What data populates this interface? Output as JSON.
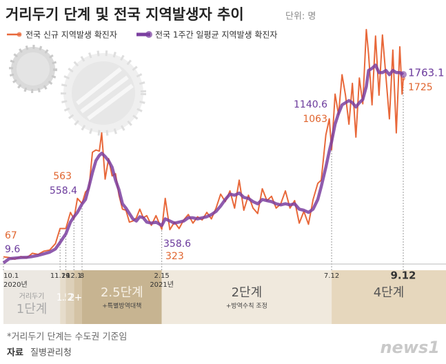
{
  "chart_data": {
    "type": "line",
    "title": "거리두기 단계 및 전국 지역발생자 추이",
    "unit": "단위: 명",
    "x": [
      "2020-10-01",
      "2020-10-06",
      "2020-10-11",
      "2020-10-16",
      "2020-10-21",
      "2020-10-26",
      "2020-10-31",
      "2020-11-05",
      "2020-11-10",
      "2020-11-15",
      "2020-11-19",
      "2020-11-24",
      "2020-11-28",
      "2020-12-01",
      "2020-12-04",
      "2020-12-08",
      "2020-12-11",
      "2020-12-14",
      "2020-12-17",
      "2020-12-20",
      "2020-12-23",
      "2020-12-25",
      "2020-12-28",
      "2020-12-31",
      "2021-01-03",
      "2021-01-06",
      "2021-01-09",
      "2021-01-12",
      "2021-01-15",
      "2021-01-18",
      "2021-01-21",
      "2021-01-24",
      "2021-01-27",
      "2021-01-30",
      "2021-02-02",
      "2021-02-06",
      "2021-02-10",
      "2021-02-15",
      "2021-02-18",
      "2021-02-22",
      "2021-02-26",
      "2021-03-02",
      "2021-03-06",
      "2021-03-10",
      "2021-03-14",
      "2021-03-18",
      "2021-03-22",
      "2021-03-26",
      "2021-03-30",
      "2021-04-03",
      "2021-04-07",
      "2021-04-11",
      "2021-04-15",
      "2021-04-19",
      "2021-04-23",
      "2021-04-27",
      "2021-05-01",
      "2021-05-05",
      "2021-05-09",
      "2021-05-13",
      "2021-05-17",
      "2021-05-21",
      "2021-05-25",
      "2021-05-29",
      "2021-06-02",
      "2021-06-06",
      "2021-06-10",
      "2021-06-14",
      "2021-06-18",
      "2021-06-22",
      "2021-06-26",
      "2021-06-30",
      "2021-07-03",
      "2021-07-07",
      "2021-07-10",
      "2021-07-12",
      "2021-07-15",
      "2021-07-18",
      "2021-07-21",
      "2021-07-24",
      "2021-07-27",
      "2021-07-30",
      "2021-08-02",
      "2021-08-05",
      "2021-08-08",
      "2021-08-11",
      "2021-08-13",
      "2021-08-16",
      "2021-08-19",
      "2021-08-22",
      "2021-08-25",
      "2021-08-28",
      "2021-08-31",
      "2021-09-03",
      "2021-09-06",
      "2021-09-09",
      "2021-09-11",
      "2021-09-12"
    ],
    "series": [
      {
        "name": "전국 신규 지역발생 확진자",
        "color": "#e8683a",
        "values": [
          67,
          60,
          45,
          70,
          55,
          100,
          90,
          120,
          130,
          190,
          330,
          330,
          480,
          420,
          610,
          563,
          670,
          700,
          1040,
          1060,
          1050,
          1220,
          790,
          980,
          820,
          840,
          640,
          510,
          500,
          390,
          400,
          430,
          510,
          430,
          450,
          360,
          450,
          323,
          610,
          320,
          390,
          330,
          410,
          460,
          380,
          440,
          410,
          480,
          420,
          520,
          650,
          580,
          680,
          520,
          780,
          500,
          640,
          520,
          470,
          700,
          590,
          630,
          520,
          560,
          680,
          520,
          590,
          380,
          490,
          370,
          600,
          750,
          780,
          1200,
          1350,
          1063,
          1580,
          1390,
          1760,
          1570,
          1300,
          1680,
          1180,
          1730,
          1490,
          2180,
          1950,
          1480,
          2120,
          1570,
          2130,
          1740,
          1350,
          1990,
          1220,
          2020,
          1580,
          1725
        ],
        "value_labels": [
          "67",
          null,
          null,
          null,
          null,
          null,
          null,
          null,
          null,
          null,
          null,
          null,
          null,
          null,
          null,
          "563",
          null,
          null,
          null,
          null,
          null,
          null,
          null,
          null,
          null,
          null,
          null,
          null,
          null,
          null,
          null,
          null,
          null,
          null,
          null,
          null,
          null,
          "323",
          null,
          null,
          null,
          null,
          null,
          null,
          null,
          null,
          null,
          null,
          null,
          null,
          null,
          null,
          null,
          null,
          null,
          null,
          null,
          null,
          null,
          null,
          null,
          null,
          null,
          null,
          null,
          null,
          null,
          null,
          null,
          null,
          null,
          null,
          null,
          null,
          null,
          "1063",
          null,
          null,
          null,
          null,
          null,
          null,
          null,
          null,
          null,
          null,
          null,
          null,
          null,
          null,
          null,
          null,
          null,
          null,
          null,
          null,
          null,
          "1725"
        ]
      },
      {
        "name": "전국 1주간 일평균 지역발생 확진자",
        "color": "#7b3fa0",
        "values": [
          9.6,
          50,
          55,
          60,
          62,
          70,
          80,
          95,
          110,
          140,
          200,
          280,
          390,
          440,
          480,
          558.4,
          600,
          720,
          850,
          960,
          1010,
          1030,
          1000,
          960,
          900,
          780,
          690,
          560,
          520,
          470,
          420,
          400,
          440,
          430,
          390,
          380,
          390,
          358.6,
          420,
          400,
          380,
          390,
          400,
          430,
          430,
          420,
          430,
          440,
          460,
          490,
          540,
          600,
          650,
          640,
          660,
          620,
          610,
          580,
          560,
          600,
          590,
          580,
          560,
          550,
          560,
          550,
          560,
          510,
          500,
          480,
          510,
          600,
          720,
          900,
          1050,
          1140.6,
          1300,
          1400,
          1480,
          1500,
          1520,
          1500,
          1460,
          1500,
          1530,
          1650,
          1800,
          1820,
          1850,
          1780,
          1780,
          1800,
          1760,
          1800,
          1780,
          1780,
          1770,
          1763.1
        ],
        "value_labels": [
          "9.6",
          null,
          null,
          null,
          null,
          null,
          null,
          null,
          null,
          null,
          null,
          null,
          null,
          null,
          null,
          "558.4",
          null,
          null,
          null,
          null,
          null,
          null,
          null,
          null,
          null,
          null,
          null,
          null,
          null,
          null,
          null,
          null,
          null,
          null,
          null,
          null,
          null,
          "358.6",
          null,
          null,
          null,
          null,
          null,
          null,
          null,
          null,
          null,
          null,
          null,
          null,
          null,
          null,
          null,
          null,
          null,
          null,
          null,
          null,
          null,
          null,
          null,
          null,
          null,
          null,
          null,
          null,
          null,
          null,
          null,
          null,
          null,
          null,
          null,
          null,
          null,
          "1140.6",
          null,
          null,
          null,
          null,
          null,
          null,
          null,
          null,
          null,
          null,
          null,
          null,
          null,
          null,
          null,
          null,
          null,
          null,
          null,
          null,
          null,
          "1763.1"
        ]
      }
    ],
    "xlim": [
      "2020-10-01",
      "2021-09-12"
    ],
    "ylim": [
      0,
      2400
    ],
    "xticks": [
      {
        "value": "2020-10-01",
        "label": "10.1"
      },
      {
        "value": "2020-11-19",
        "label": "11.19"
      },
      {
        "value": "2020-11-24",
        "label": "24"
      },
      {
        "value": "2020-12-01",
        "label": "12.1"
      },
      {
        "value": "2020-12-08",
        "label": "8"
      },
      {
        "value": "2021-02-15",
        "label": "2.15"
      },
      {
        "value": "2021-07-12",
        "label": "7.12"
      },
      {
        "value": "2021-09-12",
        "label": "9.12"
      }
    ],
    "year_labels": [
      {
        "x": "2020-10-01",
        "label": "2020년"
      },
      {
        "x": "2021-02-15",
        "label": "2021년"
      }
    ],
    "stages": [
      {
        "start": "2020-10-01",
        "end": "2020-11-19",
        "label": "1단계",
        "heading": "거리두기",
        "color": "#ece8e2"
      },
      {
        "start": "2020-11-19",
        "end": "2020-11-24",
        "label": "1.5",
        "color": "#e6dccb"
      },
      {
        "start": "2020-11-24",
        "end": "2020-12-01",
        "label": "2",
        "color": "#ddd0b9"
      },
      {
        "start": "2020-12-01",
        "end": "2020-12-08",
        "label": "2+α",
        "color": "#d4c3a5"
      },
      {
        "start": "2020-12-08",
        "end": "2021-02-15",
        "label": "2.5단계",
        "note": "+특별방역대책",
        "color": "#c7b491"
      },
      {
        "start": "2021-02-15",
        "end": "2021-07-12",
        "label": "2단계",
        "note": "+방역수칙 조정",
        "color": "#f0e9dd"
      },
      {
        "start": "2021-07-12",
        "label": "4단계",
        "color": "#e6d7bd"
      }
    ],
    "footnote": "*거리두기 단계는 수도권 기준임",
    "source_label": "자료",
    "source": "질병관리청",
    "logo": "news1"
  }
}
